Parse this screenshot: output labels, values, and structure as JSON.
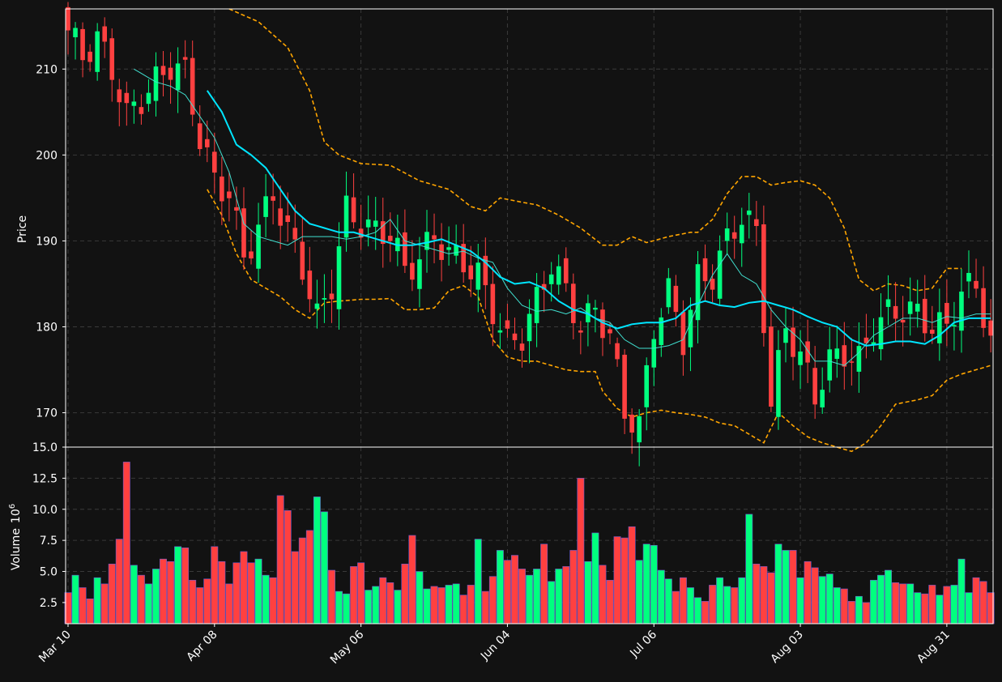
{
  "chart_data": {
    "type": "candlestick",
    "colors": {
      "background": "#121212",
      "up": "#00ff7f",
      "down": "#ff4040",
      "bollinger": "#ffa500",
      "ma_fast": "#40e0d0",
      "ma_slow": "#00e5ff",
      "grid": "#3a3a3a",
      "frame": "#ffffff"
    },
    "price_panel": {
      "ylabel": "Price",
      "ylim": [
        166,
        217
      ],
      "yticks": [
        170,
        180,
        190,
        200,
        210
      ]
    },
    "volume_panel": {
      "ylabel": "Volume",
      "ylabel_exponent": "10",
      "ylabel_power": "6",
      "unit": "millions",
      "ylim": [
        0.8,
        15.0
      ],
      "yticks": [
        2.5,
        5.0,
        7.5,
        10.0,
        12.5,
        15.0
      ],
      "ytick_labels": [
        "2.5",
        "5.0",
        "7.5",
        "10.0",
        "12.5",
        "15.0"
      ]
    },
    "x_axis": {
      "tick_labels": [
        "Mar 10",
        "Apr 08",
        "May 06",
        "Jun 04",
        "Jul 06",
        "Aug 03",
        "Aug 31"
      ],
      "tick_indices": [
        0,
        20,
        40,
        60,
        80,
        100,
        120
      ],
      "num_bars": 127
    },
    "series_names": [
      "OHLC",
      "Volume",
      "Bollinger Upper",
      "Bollinger Lower",
      "MA fast",
      "MA slow"
    ],
    "ohlc_anchors": [
      [
        0,
        214.5
      ],
      [
        2,
        211.5
      ],
      [
        4,
        213.5
      ],
      [
        6,
        210.0
      ],
      [
        8,
        204.5
      ],
      [
        10,
        206.5
      ],
      [
        14,
        210.5
      ],
      [
        16,
        209.5
      ],
      [
        18,
        202.0
      ],
      [
        20,
        197.0
      ],
      [
        22,
        195.5
      ],
      [
        24,
        188.0
      ],
      [
        26,
        191.5
      ],
      [
        28,
        195.5
      ],
      [
        30,
        191.0
      ],
      [
        32,
        187.0
      ],
      [
        34,
        181.0
      ],
      [
        36,
        185.0
      ],
      [
        38,
        193.5
      ],
      [
        40,
        192.0
      ],
      [
        42,
        191.0
      ],
      [
        44,
        191.0
      ],
      [
        46,
        186.5
      ],
      [
        48,
        188.0
      ],
      [
        50,
        190.5
      ],
      [
        52,
        188.5
      ],
      [
        54,
        187.5
      ],
      [
        56,
        186.0
      ],
      [
        58,
        182.0
      ],
      [
        60,
        178.0
      ],
      [
        62,
        179.0
      ],
      [
        64,
        183.0
      ],
      [
        66,
        187.5
      ],
      [
        68,
        184.0
      ],
      [
        70,
        180.0
      ],
      [
        72,
        182.0
      ],
      [
        74,
        179.0
      ],
      [
        76,
        170.0
      ],
      [
        78,
        168.5
      ],
      [
        80,
        180.0
      ],
      [
        82,
        184.0
      ],
      [
        84,
        178.5
      ],
      [
        86,
        185.5
      ],
      [
        88,
        186.0
      ],
      [
        90,
        190.0
      ],
      [
        92,
        193.0
      ],
      [
        94,
        191.0
      ],
      [
        96,
        171.0
      ],
      [
        98,
        180.0
      ],
      [
        100,
        176.5
      ],
      [
        102,
        172.0
      ],
      [
        104,
        176.0
      ],
      [
        106,
        177.0
      ],
      [
        108,
        176.0
      ],
      [
        110,
        180.0
      ],
      [
        112,
        181.5
      ],
      [
        114,
        182.0
      ],
      [
        116,
        181.5
      ],
      [
        118,
        180.0
      ],
      [
        120,
        180.0
      ],
      [
        122,
        184.0
      ],
      [
        124,
        185.0
      ],
      [
        126,
        178.0
      ]
    ],
    "volume_anchors": [
      [
        0,
        3.3
      ],
      [
        1,
        4.7
      ],
      [
        2,
        3.7
      ],
      [
        3,
        2.8
      ],
      [
        4,
        4.5
      ],
      [
        5,
        4.0
      ],
      [
        6,
        5.6
      ],
      [
        7,
        7.6
      ],
      [
        8,
        13.8
      ],
      [
        9,
        5.5
      ],
      [
        10,
        4.7
      ],
      [
        11,
        4.0
      ],
      [
        12,
        5.2
      ],
      [
        13,
        6.0
      ],
      [
        14,
        5.8
      ],
      [
        15,
        7.0
      ],
      [
        16,
        6.9
      ],
      [
        17,
        4.3
      ],
      [
        18,
        3.7
      ],
      [
        19,
        4.4
      ],
      [
        20,
        7.0
      ],
      [
        21,
        5.8
      ],
      [
        22,
        4.0
      ],
      [
        23,
        5.7
      ],
      [
        24,
        6.6
      ],
      [
        25,
        5.7
      ],
      [
        26,
        6.0
      ],
      [
        27,
        4.7
      ],
      [
        28,
        4.5
      ],
      [
        29,
        11.1
      ],
      [
        30,
        9.9
      ],
      [
        31,
        6.6
      ],
      [
        32,
        7.7
      ],
      [
        33,
        8.3
      ],
      [
        34,
        11.0
      ],
      [
        35,
        9.8
      ],
      [
        36,
        5.1
      ],
      [
        37,
        3.4
      ],
      [
        38,
        3.2
      ],
      [
        39,
        5.4
      ],
      [
        40,
        5.7
      ],
      [
        41,
        3.5
      ],
      [
        42,
        3.8
      ],
      [
        43,
        4.5
      ],
      [
        44,
        4.1
      ],
      [
        45,
        3.5
      ],
      [
        46,
        5.6
      ],
      [
        47,
        7.9
      ],
      [
        48,
        5.0
      ],
      [
        49,
        3.6
      ],
      [
        50,
        3.8
      ],
      [
        51,
        3.7
      ],
      [
        52,
        3.9
      ],
      [
        53,
        4.0
      ],
      [
        54,
        3.1
      ],
      [
        55,
        3.9
      ],
      [
        56,
        7.6
      ],
      [
        57,
        3.4
      ],
      [
        58,
        4.6
      ],
      [
        59,
        6.7
      ],
      [
        60,
        5.9
      ],
      [
        61,
        6.3
      ],
      [
        62,
        5.2
      ],
      [
        63,
        4.7
      ],
      [
        64,
        5.2
      ],
      [
        65,
        7.2
      ],
      [
        66,
        4.2
      ],
      [
        67,
        5.2
      ],
      [
        68,
        5.4
      ],
      [
        69,
        6.7
      ],
      [
        70,
        12.5
      ],
      [
        71,
        5.8
      ],
      [
        72,
        8.1
      ],
      [
        73,
        5.5
      ],
      [
        74,
        4.3
      ],
      [
        75,
        7.8
      ],
      [
        76,
        7.7
      ],
      [
        77,
        8.6
      ],
      [
        78,
        5.9
      ],
      [
        79,
        7.2
      ],
      [
        80,
        7.1
      ],
      [
        81,
        5.1
      ],
      [
        82,
        4.4
      ],
      [
        83,
        3.4
      ],
      [
        84,
        4.5
      ],
      [
        85,
        3.7
      ],
      [
        86,
        2.9
      ],
      [
        87,
        2.6
      ],
      [
        88,
        3.9
      ],
      [
        89,
        4.5
      ],
      [
        90,
        3.8
      ],
      [
        91,
        3.7
      ],
      [
        92,
        4.5
      ],
      [
        93,
        9.6
      ],
      [
        94,
        5.6
      ],
      [
        95,
        5.4
      ],
      [
        96,
        4.9
      ],
      [
        97,
        7.2
      ],
      [
        98,
        6.7
      ],
      [
        99,
        6.7
      ],
      [
        100,
        4.5
      ],
      [
        101,
        5.8
      ],
      [
        102,
        5.3
      ],
      [
        103,
        4.6
      ],
      [
        104,
        4.8
      ],
      [
        105,
        3.7
      ],
      [
        106,
        3.6
      ],
      [
        107,
        2.6
      ],
      [
        108,
        3.0
      ],
      [
        109,
        2.5
      ],
      [
        110,
        4.3
      ],
      [
        111,
        4.7
      ],
      [
        112,
        5.1
      ],
      [
        113,
        4.1
      ],
      [
        114,
        4.0
      ],
      [
        115,
        4.0
      ],
      [
        116,
        3.3
      ],
      [
        117,
        3.2
      ],
      [
        118,
        3.9
      ],
      [
        119,
        3.1
      ],
      [
        120,
        3.8
      ],
      [
        121,
        3.9
      ],
      [
        122,
        6.0
      ],
      [
        123,
        3.3
      ],
      [
        124,
        4.5
      ],
      [
        125,
        4.2
      ],
      [
        126,
        3.3
      ]
    ],
    "bollinger_upper": [
      [
        22,
        217
      ],
      [
        26,
        215.5
      ],
      [
        30,
        212.5
      ],
      [
        33,
        207.5
      ],
      [
        35,
        201.5
      ],
      [
        37,
        200
      ],
      [
        40,
        199
      ],
      [
        44,
        198.8
      ],
      [
        48,
        197
      ],
      [
        52,
        196
      ],
      [
        55,
        194
      ],
      [
        57,
        193.5
      ],
      [
        59,
        195
      ],
      [
        62,
        194.5
      ],
      [
        64,
        194.2
      ],
      [
        67,
        193
      ],
      [
        70,
        191.5
      ],
      [
        73,
        189.5
      ],
      [
        75,
        189.5
      ],
      [
        77,
        190.5
      ],
      [
        79,
        189.8
      ],
      [
        82,
        190.5
      ],
      [
        85,
        191
      ],
      [
        86,
        191
      ],
      [
        88,
        192.5
      ],
      [
        90,
        195.5
      ],
      [
        92,
        197.5
      ],
      [
        94,
        197.5
      ],
      [
        96,
        196.5
      ],
      [
        98,
        196.8
      ],
      [
        100,
        197
      ],
      [
        102,
        196.5
      ],
      [
        104,
        195
      ],
      [
        106,
        191.5
      ],
      [
        108,
        185.5
      ],
      [
        110,
        184.2
      ],
      [
        112,
        185
      ],
      [
        114,
        184.8
      ],
      [
        116,
        184.2
      ],
      [
        118,
        184.5
      ],
      [
        120,
        186.8
      ],
      [
        122,
        186.8
      ]
    ],
    "bollinger_lower": [
      [
        19,
        196
      ],
      [
        21,
        193
      ],
      [
        23,
        188.5
      ],
      [
        25,
        185.5
      ],
      [
        27,
        184.5
      ],
      [
        29,
        183.5
      ],
      [
        31,
        182
      ],
      [
        33,
        181
      ],
      [
        35,
        182.8
      ],
      [
        37,
        183
      ],
      [
        40,
        183.2
      ],
      [
        42,
        183.2
      ],
      [
        44,
        183.3
      ],
      [
        46,
        182
      ],
      [
        48,
        182
      ],
      [
        50,
        182.2
      ],
      [
        52,
        184.2
      ],
      [
        54,
        184.8
      ],
      [
        56,
        183.5
      ],
      [
        58,
        178.5
      ],
      [
        60,
        176.5
      ],
      [
        62,
        176
      ],
      [
        64,
        176
      ],
      [
        66,
        175.5
      ],
      [
        68,
        175
      ],
      [
        70,
        174.8
      ],
      [
        72,
        174.8
      ],
      [
        73,
        172.5
      ],
      [
        75,
        170.5
      ],
      [
        77,
        169.5
      ],
      [
        79,
        170
      ],
      [
        81,
        170.3
      ],
      [
        83,
        170
      ],
      [
        85,
        169.8
      ],
      [
        87,
        169.5
      ],
      [
        89,
        168.8
      ],
      [
        91,
        168.5
      ],
      [
        93,
        167.5
      ],
      [
        95,
        166.5
      ],
      [
        97,
        170
      ],
      [
        99,
        168.5
      ],
      [
        101,
        167.2
      ],
      [
        103,
        166.5
      ],
      [
        105,
        166
      ],
      [
        107,
        165.5
      ],
      [
        109,
        166.5
      ],
      [
        111,
        168.5
      ],
      [
        113,
        171
      ],
      [
        116,
        171.5
      ],
      [
        118,
        172
      ],
      [
        120,
        173.8
      ],
      [
        122,
        174.5
      ],
      [
        124,
        175
      ],
      [
        126,
        175.5
      ]
    ],
    "ma_fast": [
      [
        9,
        210
      ],
      [
        12,
        208.5
      ],
      [
        14,
        208
      ],
      [
        16,
        207
      ],
      [
        18,
        204.5
      ],
      [
        20,
        202
      ],
      [
        22,
        198
      ],
      [
        24,
        192
      ],
      [
        26,
        190.5
      ],
      [
        28,
        190
      ],
      [
        30,
        189.5
      ],
      [
        32,
        190.5
      ],
      [
        34,
        190.5
      ],
      [
        36,
        190.5
      ],
      [
        38,
        190.2
      ],
      [
        40,
        190.5
      ],
      [
        42,
        191
      ],
      [
        44,
        192.5
      ],
      [
        46,
        190
      ],
      [
        48,
        189.5
      ],
      [
        50,
        189
      ],
      [
        52,
        188.5
      ],
      [
        54,
        188.8
      ],
      [
        56,
        188
      ],
      [
        58,
        187.5
      ],
      [
        60,
        184.5
      ],
      [
        62,
        182.5
      ],
      [
        64,
        181.8
      ],
      [
        66,
        182
      ],
      [
        68,
        181.5
      ],
      [
        70,
        182.2
      ],
      [
        72,
        181
      ],
      [
        74,
        180.5
      ],
      [
        76,
        178.5
      ],
      [
        78,
        177.5
      ],
      [
        80,
        177.5
      ],
      [
        82,
        177.8
      ],
      [
        84,
        178.5
      ],
      [
        86,
        182.5
      ],
      [
        88,
        186
      ],
      [
        90,
        188.5
      ],
      [
        92,
        186
      ],
      [
        94,
        185
      ],
      [
        96,
        182
      ],
      [
        98,
        180
      ],
      [
        100,
        178.5
      ],
      [
        102,
        176
      ],
      [
        104,
        176
      ],
      [
        106,
        175.5
      ],
      [
        108,
        177
      ],
      [
        110,
        179
      ],
      [
        112,
        180
      ],
      [
        114,
        181
      ],
      [
        116,
        181
      ],
      [
        118,
        180.5
      ],
      [
        120,
        181.2
      ],
      [
        122,
        181
      ],
      [
        124,
        181.5
      ],
      [
        126,
        181.5
      ]
    ],
    "ma_slow": [
      [
        19,
        207.5
      ],
      [
        21,
        205
      ],
      [
        23,
        201.2
      ],
      [
        25,
        200
      ],
      [
        27,
        198.5
      ],
      [
        29,
        196
      ],
      [
        31,
        193.5
      ],
      [
        33,
        192
      ],
      [
        35,
        191.5
      ],
      [
        37,
        191
      ],
      [
        39,
        191
      ],
      [
        41,
        190.5
      ],
      [
        43,
        190
      ],
      [
        45,
        189.5
      ],
      [
        47,
        189.5
      ],
      [
        49,
        189.8
      ],
      [
        51,
        190.2
      ],
      [
        53,
        189.5
      ],
      [
        55,
        188.8
      ],
      [
        57,
        187.5
      ],
      [
        59,
        185.8
      ],
      [
        61,
        185
      ],
      [
        63,
        185.2
      ],
      [
        65,
        184.5
      ],
      [
        67,
        183
      ],
      [
        69,
        182
      ],
      [
        71,
        181.5
      ],
      [
        73,
        180.5
      ],
      [
        75,
        179.8
      ],
      [
        77,
        180.3
      ],
      [
        79,
        180.5
      ],
      [
        81,
        180.5
      ],
      [
        83,
        181
      ],
      [
        85,
        182.5
      ],
      [
        87,
        183
      ],
      [
        89,
        182.5
      ],
      [
        91,
        182.3
      ],
      [
        93,
        182.8
      ],
      [
        95,
        183
      ],
      [
        97,
        182.5
      ],
      [
        99,
        182
      ],
      [
        101,
        181.2
      ],
      [
        103,
        180.5
      ],
      [
        105,
        180
      ],
      [
        107,
        178.5
      ],
      [
        109,
        177.8
      ],
      [
        111,
        178
      ],
      [
        113,
        178.3
      ],
      [
        115,
        178.3
      ],
      [
        117,
        178
      ],
      [
        119,
        179
      ],
      [
        121,
        180.5
      ],
      [
        123,
        181
      ],
      [
        126,
        181
      ]
    ]
  }
}
